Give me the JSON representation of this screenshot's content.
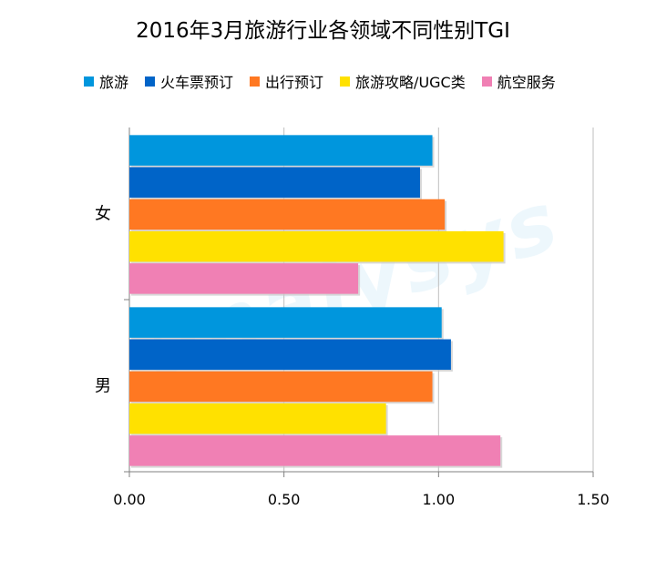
{
  "chart_data": {
    "type": "bar",
    "orientation": "horizontal",
    "title": "2016年3月旅游行业各领域不同性别TGI",
    "categories": [
      "女",
      "男"
    ],
    "series": [
      {
        "name": "旅游",
        "color": "#0096dd",
        "values": [
          0.98,
          1.01
        ]
      },
      {
        "name": "火车票预订",
        "color": "#0064c8",
        "values": [
          0.94,
          1.04
        ]
      },
      {
        "name": "出行预订",
        "color": "#ff7822",
        "values": [
          1.02,
          0.98
        ]
      },
      {
        "name": "旅游攻略/UGC类",
        "color": "#ffe100",
        "values": [
          1.21,
          0.83
        ]
      },
      {
        "name": "航空服务",
        "color": "#f080b4",
        "values": [
          0.74,
          1.2
        ]
      }
    ],
    "xlim": [
      0,
      1.5
    ],
    "xticks": [
      "0.00",
      "0.50",
      "1.00",
      "1.50"
    ],
    "grid": true,
    "legend_position": "top"
  }
}
